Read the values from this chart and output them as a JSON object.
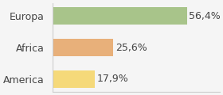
{
  "categories": [
    "America",
    "Africa",
    "Europa"
  ],
  "values": [
    17.9,
    25.6,
    56.4
  ],
  "labels": [
    "17,9%",
    "25,6%",
    "56,4%"
  ],
  "bar_colors": [
    "#f5d97a",
    "#e8b07a",
    "#a8c48a"
  ],
  "background_color": "#f5f5f5",
  "xlim": [
    0,
    70
  ],
  "bar_height": 0.55,
  "label_fontsize": 9,
  "tick_fontsize": 9
}
